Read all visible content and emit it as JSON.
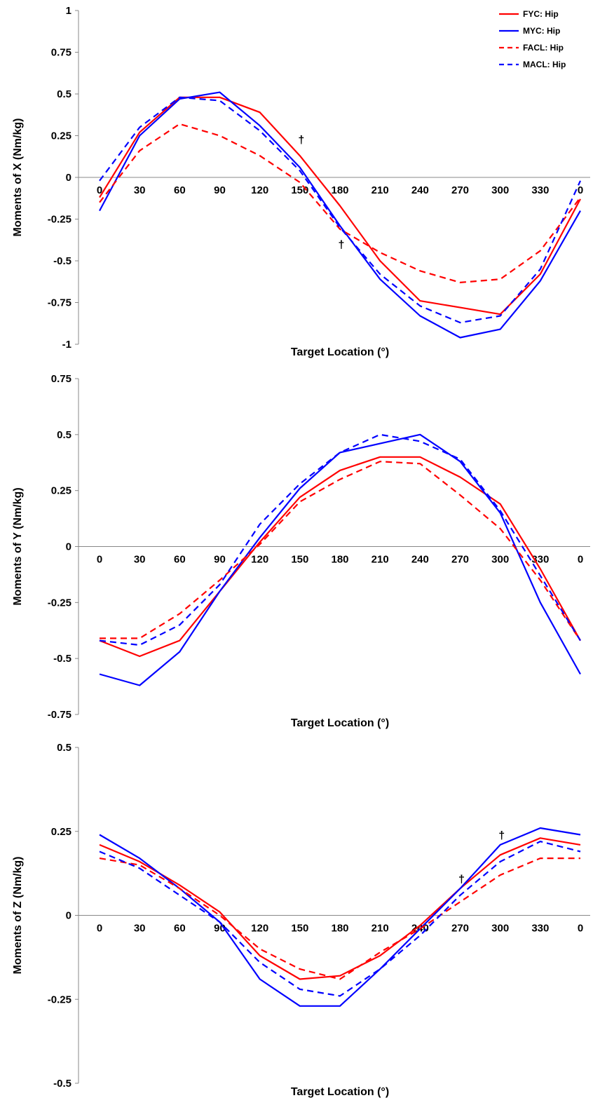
{
  "legend": [
    {
      "label": "FYC: Hip",
      "color": "#ff0000",
      "dashed": false
    },
    {
      "label": "MYC: Hip",
      "color": "#0000ff",
      "dashed": false
    },
    {
      "label": "FACL: Hip",
      "color": "#ff0000",
      "dashed": true
    },
    {
      "label": "MACL: Hip",
      "color": "#0000ff",
      "dashed": true
    }
  ],
  "chart_data": [
    {
      "type": "line",
      "ylabel": "Moments of X (Nm/kg)",
      "xlabel": "Target Location (°)",
      "categories": [
        "0",
        "30",
        "60",
        "90",
        "120",
        "150",
        "180",
        "210",
        "240",
        "270",
        "300",
        "330",
        "0"
      ],
      "ylim": [
        -1,
        1
      ],
      "yticks": [
        "-1",
        "-0.75",
        "-0.5",
        "-0.25",
        "0",
        "0.25",
        "0.5",
        "0.75",
        "1"
      ],
      "grid": false,
      "legend_position": "top-right",
      "series": [
        {
          "name": "FYC: Hip",
          "values": [
            -0.12,
            0.27,
            0.48,
            0.48,
            0.39,
            0.13,
            -0.17,
            -0.5,
            -0.74,
            -0.78,
            -0.82,
            -0.58,
            -0.13
          ]
        },
        {
          "name": "MYC: Hip",
          "values": [
            -0.2,
            0.25,
            0.47,
            0.51,
            0.31,
            0.06,
            -0.29,
            -0.61,
            -0.83,
            -0.96,
            -0.91,
            -0.62,
            -0.2
          ]
        },
        {
          "name": "FACL: Hip",
          "values": [
            -0.15,
            0.16,
            0.32,
            0.25,
            0.13,
            -0.03,
            -0.31,
            -0.45,
            -0.56,
            -0.63,
            -0.61,
            -0.44,
            -0.12
          ]
        },
        {
          "name": "MACL: Hip",
          "values": [
            -0.02,
            0.3,
            0.48,
            0.46,
            0.28,
            0.04,
            -0.3,
            -0.58,
            -0.77,
            -0.87,
            -0.83,
            -0.55,
            -0.02
          ]
        }
      ],
      "annotations": [
        {
          "text": "†",
          "x_index": 5,
          "y": 0.23
        },
        {
          "text": "†",
          "x_index": 6,
          "y": -0.4
        }
      ]
    },
    {
      "type": "line",
      "ylabel": "Moments of Y (Nm/kg)",
      "xlabel": "Target Location (°)",
      "categories": [
        "0",
        "30",
        "60",
        "90",
        "120",
        "150",
        "180",
        "210",
        "240",
        "270",
        "300",
        "330",
        "0"
      ],
      "ylim": [
        -0.75,
        0.75
      ],
      "yticks": [
        "-0.75",
        "-0.5",
        "-0.25",
        "0",
        "0.25",
        "0.5",
        "0.75"
      ],
      "grid": false,
      "series": [
        {
          "name": "FYC: Hip",
          "values": [
            -0.42,
            -0.49,
            -0.42,
            -0.2,
            0.02,
            0.22,
            0.34,
            0.4,
            0.4,
            0.31,
            0.19,
            -0.1,
            -0.42
          ]
        },
        {
          "name": "MYC: Hip",
          "values": [
            -0.57,
            -0.62,
            -0.47,
            -0.2,
            0.04,
            0.26,
            0.42,
            0.46,
            0.5,
            0.38,
            0.15,
            -0.25,
            -0.57
          ]
        },
        {
          "name": "FACL: Hip",
          "values": [
            -0.41,
            -0.41,
            -0.3,
            -0.15,
            0.01,
            0.2,
            0.3,
            0.38,
            0.37,
            0.23,
            0.08,
            -0.15,
            -0.42
          ]
        },
        {
          "name": "MACL: Hip",
          "values": [
            -0.42,
            -0.44,
            -0.35,
            -0.17,
            0.1,
            0.28,
            0.42,
            0.5,
            0.47,
            0.39,
            0.16,
            -0.13,
            -0.42
          ]
        }
      ]
    },
    {
      "type": "line",
      "ylabel": "Moments of Z (Nm/kg)",
      "xlabel": "Target Location (°)",
      "categories": [
        "0",
        "30",
        "60",
        "90",
        "120",
        "150",
        "180",
        "210",
        "240",
        "270",
        "300",
        "330",
        "0"
      ],
      "ylim": [
        -0.5,
        0.5
      ],
      "yticks": [
        "-0.5",
        "-0.25",
        "0",
        "0.25",
        "0.5"
      ],
      "grid": false,
      "series": [
        {
          "name": "FYC: Hip",
          "values": [
            0.21,
            0.16,
            0.09,
            0.01,
            -0.12,
            -0.19,
            -0.18,
            -0.12,
            -0.03,
            0.08,
            0.18,
            0.23,
            0.21
          ]
        },
        {
          "name": "MYC: Hip",
          "values": [
            0.24,
            0.17,
            0.08,
            -0.02,
            -0.19,
            -0.27,
            -0.27,
            -0.16,
            -0.04,
            0.08,
            0.21,
            0.26,
            0.24
          ]
        },
        {
          "name": "FACL: Hip",
          "values": [
            0.17,
            0.15,
            0.08,
            0.0,
            -0.1,
            -0.16,
            -0.19,
            -0.11,
            -0.04,
            0.04,
            0.12,
            0.17,
            0.17
          ]
        },
        {
          "name": "MACL: Hip",
          "values": [
            0.19,
            0.14,
            0.06,
            -0.02,
            -0.14,
            -0.22,
            -0.24,
            -0.16,
            -0.06,
            0.06,
            0.16,
            0.22,
            0.19
          ]
        }
      ],
      "annotations": [
        {
          "text": "†",
          "x_index": 9,
          "y": 0.11
        },
        {
          "text": "†",
          "x_index": 10,
          "y": 0.24
        }
      ]
    }
  ]
}
